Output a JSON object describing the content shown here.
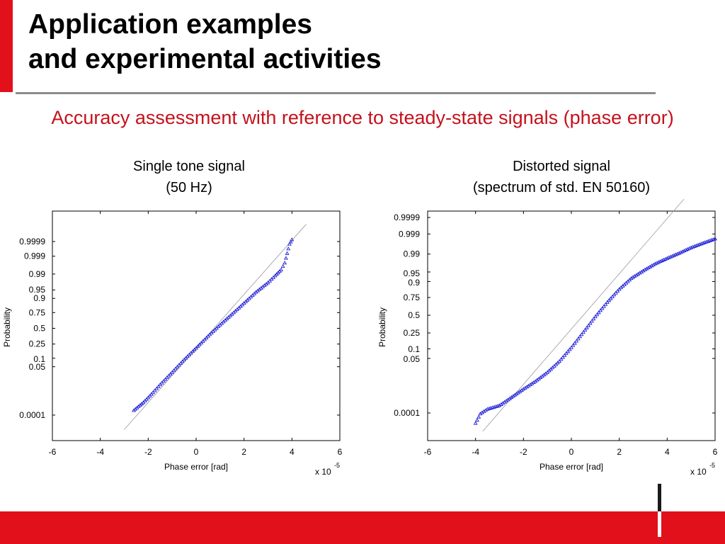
{
  "title": {
    "line1": "Application examples",
    "line2": "and experimental activities"
  },
  "subtitle": "Accuracy assessment with reference to steady-state signals (phase error)",
  "colors": {
    "accent": "#e2101b",
    "subtitle": "#c4121c",
    "marker": "#2020d8",
    "reference_line": "#9a9a9a"
  },
  "charts": [
    {
      "caption_line1": "Single tone signal",
      "caption_line2": "(50 Hz)"
    },
    {
      "caption_line1": "Distorted signal",
      "caption_line2": "(spectrum of std. EN 50160)"
    }
  ],
  "chart_data": [
    {
      "type": "scatter",
      "subtype": "normal-probability-plot",
      "xlabel": "Phase error [rad]",
      "ylabel": "Probability",
      "x_scale_note": "x 10",
      "x_scale_exponent": "-5",
      "xlim": [
        -6,
        6
      ],
      "xticks": [
        -6,
        -4,
        -2,
        0,
        2,
        4,
        6
      ],
      "xtick_labels": [
        "-6",
        "-4",
        "-2",
        "0",
        "2",
        "4",
        "6"
      ],
      "y_scale": "normal-probability",
      "yticks": [
        0.0001,
        0.05,
        0.1,
        0.25,
        0.5,
        0.75,
        0.9,
        0.95,
        0.99,
        0.999,
        0.9999
      ],
      "ytick_labels": [
        "0.0001",
        "0.05",
        "0.1",
        "0.25",
        "0.5",
        "0.75",
        "0.9",
        "0.95",
        "0.99",
        "0.999",
        "0.9999"
      ],
      "grid": false,
      "series": [
        {
          "points": [
            [
              -2.6,
              0.00022
            ],
            [
              -2.2,
              0.00075
            ],
            [
              -2.0,
              0.0015
            ],
            [
              -1.8,
              0.003
            ],
            [
              -1.5,
              0.008
            ],
            [
              -1.0,
              0.03
            ],
            [
              -0.5,
              0.09
            ],
            [
              0.0,
              0.2
            ],
            [
              0.5,
              0.37
            ],
            [
              1.0,
              0.56
            ],
            [
              1.5,
              0.73
            ],
            [
              2.0,
              0.86
            ],
            [
              2.5,
              0.94
            ],
            [
              3.0,
              0.975
            ],
            [
              3.3,
              0.988
            ],
            [
              3.55,
              0.994
            ],
            [
              3.7,
              0.9975
            ],
            [
              3.8,
              0.99935
            ],
            [
              3.9,
              0.99985
            ],
            [
              4.0,
              0.99993
            ]
          ]
        }
      ],
      "reference_line": [
        [
          -3.0,
          7.2e-06
        ],
        [
          4.6,
          0.999996
        ]
      ]
    },
    {
      "type": "scatter",
      "subtype": "normal-probability-plot",
      "xlabel": "Phase error [rad]",
      "ylabel": "Probability",
      "x_scale_note": "x 10",
      "x_scale_exponent": "-5",
      "xlim": [
        -6,
        6
      ],
      "xticks": [
        -6,
        -4,
        -2,
        0,
        2,
        4,
        6
      ],
      "xtick_labels": [
        "-6",
        "-4",
        "-2",
        "0",
        "2",
        "4",
        "6"
      ],
      "y_scale": "normal-probability",
      "yticks": [
        0.0001,
        0.05,
        0.1,
        0.25,
        0.5,
        0.75,
        0.9,
        0.95,
        0.99,
        0.999,
        0.9999
      ],
      "ytick_labels": [
        "0.0001",
        "0.05",
        "0.1",
        "0.25",
        "0.5",
        "0.75",
        "0.9",
        "0.95",
        "0.99",
        "0.999",
        "0.9999"
      ],
      "grid": false,
      "series": [
        {
          "points": [
            [
              -4.0,
              2e-05
            ],
            [
              -3.8,
              9e-05
            ],
            [
              -3.5,
              0.00018
            ],
            [
              -3.0,
              0.0003
            ],
            [
              -2.5,
              0.0009
            ],
            [
              -2.0,
              0.0025
            ],
            [
              -1.5,
              0.006
            ],
            [
              -1.0,
              0.015
            ],
            [
              -0.5,
              0.04
            ],
            [
              0.0,
              0.11
            ],
            [
              0.5,
              0.26
            ],
            [
              1.0,
              0.48
            ],
            [
              1.5,
              0.69
            ],
            [
              2.0,
              0.84
            ],
            [
              2.5,
              0.92
            ],
            [
              3.0,
              0.955
            ],
            [
              3.5,
              0.975
            ],
            [
              4.0,
              0.985
            ],
            [
              4.5,
              0.991
            ],
            [
              5.0,
              0.995
            ],
            [
              5.5,
              0.997
            ],
            [
              6.0,
              0.9982
            ]
          ]
        }
      ],
      "reference_line": [
        [
          -3.7,
          5e-06
        ],
        [
          4.7,
          0.999995
        ]
      ]
    }
  ]
}
